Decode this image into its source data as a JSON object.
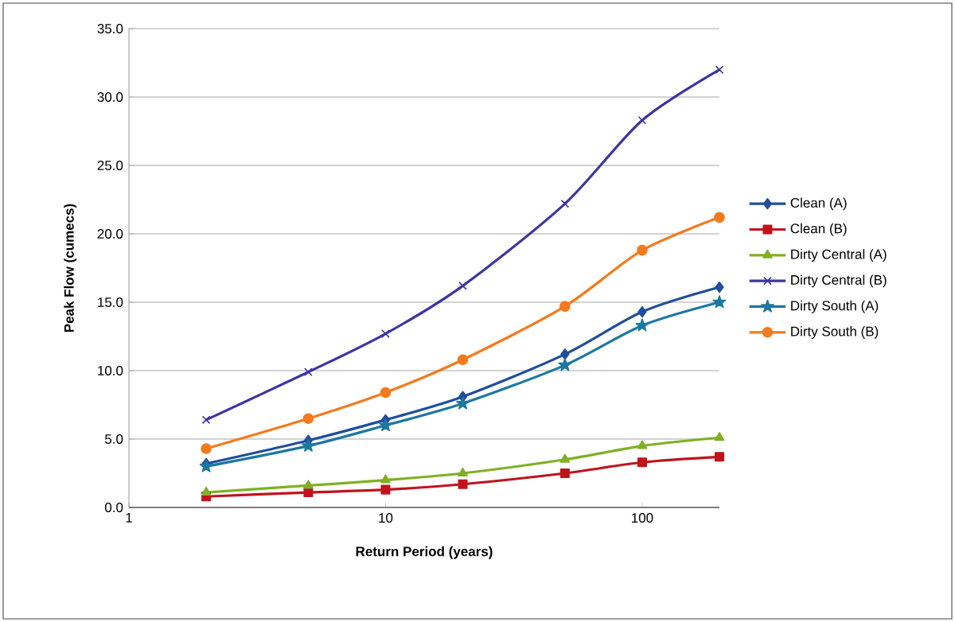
{
  "chart_data": {
    "type": "line",
    "xlabel": "Return Period (years)",
    "ylabel": "Peak Flow (cumecs)",
    "log": "x",
    "xlim": [
      1,
      200
    ],
    "xticks": [
      1,
      10,
      100
    ],
    "ylim": [
      0,
      35
    ],
    "yticks": [
      {
        "value": 0,
        "label": "0.0"
      },
      {
        "value": 5,
        "label": "5.0"
      },
      {
        "value": 10,
        "label": "10.0"
      },
      {
        "value": 15,
        "label": "15.0"
      },
      {
        "value": 20,
        "label": "20.0"
      },
      {
        "value": 25,
        "label": "25.0"
      },
      {
        "value": 30,
        "label": "30.0"
      },
      {
        "value": 35,
        "label": "35.0"
      }
    ],
    "grid": "y",
    "legend": "right",
    "x": [
      2,
      5,
      10,
      20,
      50,
      100,
      200
    ],
    "series": [
      {
        "name": "Clean (A)",
        "color": "#1f4e9c",
        "marker": "diamond",
        "values": [
          3.2,
          4.9,
          6.4,
          8.1,
          11.2,
          14.3,
          16.1
        ]
      },
      {
        "name": "Clean (B)",
        "color": "#c0141c",
        "marker": "square",
        "values": [
          0.8,
          1.1,
          1.3,
          1.7,
          2.5,
          3.3,
          3.7
        ]
      },
      {
        "name": "Dirty Central (A)",
        "color": "#7fb024",
        "marker": "triangle",
        "values": [
          1.1,
          1.6,
          2.0,
          2.5,
          3.5,
          4.5,
          5.1
        ]
      },
      {
        "name": "Dirty Central (B)",
        "color": "#3c35a0",
        "marker": "cross",
        "values": [
          6.4,
          9.9,
          12.7,
          16.2,
          22.2,
          28.3,
          32.0
        ]
      },
      {
        "name": "Dirty South (A)",
        "color": "#1c78a0",
        "marker": "star",
        "values": [
          3.0,
          4.5,
          6.0,
          7.6,
          10.4,
          13.3,
          15.0
        ]
      },
      {
        "name": "Dirty South (B)",
        "color": "#f47a1c",
        "marker": "circle",
        "values": [
          4.3,
          6.5,
          8.4,
          10.8,
          14.7,
          18.8,
          21.2
        ]
      }
    ]
  }
}
